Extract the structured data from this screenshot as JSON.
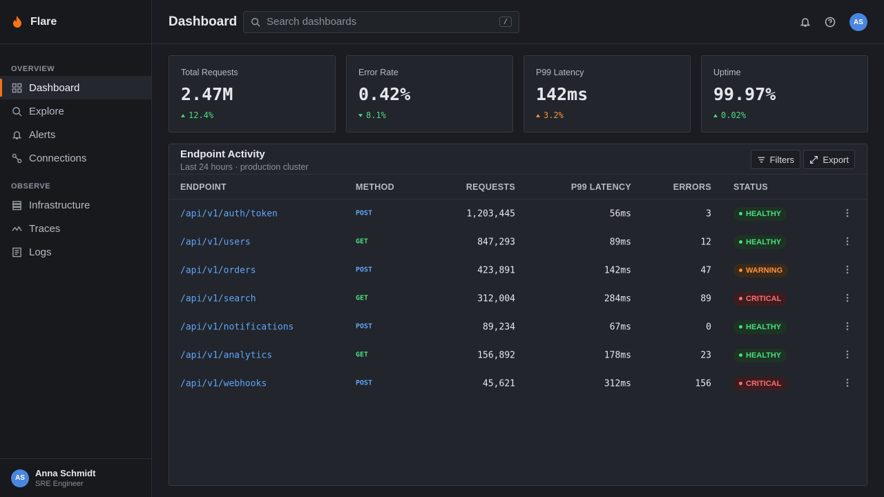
{
  "sidebar": {
    "brand": "Flare",
    "sections": [
      {
        "title": "OVERVIEW",
        "items": [
          "Dashboard",
          "Explore",
          "Alerts",
          "Connections"
        ]
      },
      {
        "title": "OBSERVE",
        "items": [
          "Infrastructure",
          "Traces",
          "Logs"
        ]
      }
    ],
    "user": {
      "initials": "AS",
      "name": "Anna Schmidt",
      "role": "SRE Engineer"
    }
  },
  "header": {
    "title": "Dashboard",
    "search_placeholder": "Search dashboards",
    "shortcut": "/",
    "avatar": "AS"
  },
  "stats": [
    {
      "label": "Total Requests",
      "value": "2.47M",
      "change": "12.4%",
      "color": "#4ade80"
    },
    {
      "label": "Error Rate",
      "value": "0.42%",
      "change": "8.1%",
      "color": "#4ade80"
    },
    {
      "label": "P99 Latency",
      "value": "142ms",
      "change": "3.2%",
      "color": "#fb923c"
    },
    {
      "label": "Uptime",
      "value": "99.97%",
      "change": "0.02%",
      "color": "#4ade80"
    }
  ],
  "table": {
    "title": "Endpoint Activity",
    "subtitle": "Last 24 hours · production cluster",
    "actions": [
      "Filters",
      "Export"
    ],
    "columns": [
      "ENDPOINT",
      "METHOD",
      "REQUESTS",
      "P99 LATENCY",
      "ERRORS",
      "STATUS"
    ],
    "rows": [
      {
        "endpoint": "/api/v1/auth/token",
        "method": {
          "label": "POST",
          "color": "#60a5fa"
        },
        "requests": "1,203,445",
        "latency": "56ms",
        "errors": "3",
        "status": {
          "label": "HEALTHY",
          "color": "#4ade80",
          "bg": "#1d3324"
        }
      },
      {
        "endpoint": "/api/v1/users",
        "method": {
          "label": "GET",
          "color": "#4ade80"
        },
        "requests": "847,293",
        "latency": "89ms",
        "errors": "12",
        "status": {
          "label": "HEALTHY",
          "color": "#4ade80",
          "bg": "#1d3324"
        }
      },
      {
        "endpoint": "/api/v1/orders",
        "method": {
          "label": "POST",
          "color": "#60a5fa"
        },
        "requests": "423,891",
        "latency": "142ms",
        "errors": "47",
        "status": {
          "label": "WARNING",
          "color": "#fb923c",
          "bg": "#3a2a1a"
        }
      },
      {
        "endpoint": "/api/v1/search",
        "method": {
          "label": "GET",
          "color": "#4ade80"
        },
        "requests": "312,004",
        "latency": "284ms",
        "errors": "89",
        "status": {
          "label": "CRITICAL",
          "color": "#f87171",
          "bg": "#3d1c20"
        }
      },
      {
        "endpoint": "/api/v1/notifications",
        "method": {
          "label": "POST",
          "color": "#60a5fa"
        },
        "requests": "89,234",
        "latency": "67ms",
        "errors": "0",
        "status": {
          "label": "HEALTHY",
          "color": "#4ade80",
          "bg": "#1d3324"
        }
      },
      {
        "endpoint": "/api/v1/analytics",
        "method": {
          "label": "GET",
          "color": "#4ade80"
        },
        "requests": "156,892",
        "latency": "178ms",
        "errors": "23",
        "status": {
          "label": "HEALTHY",
          "color": "#4ade80",
          "bg": "#1d3324"
        }
      },
      {
        "endpoint": "/api/v1/webhooks",
        "method": {
          "label": "POST",
          "color": "#60a5fa"
        },
        "requests": "45,621",
        "latency": "312ms",
        "errors": "156",
        "status": {
          "label": "CRITICAL",
          "color": "#f87171",
          "bg": "#3d1c20"
        }
      }
    ]
  }
}
